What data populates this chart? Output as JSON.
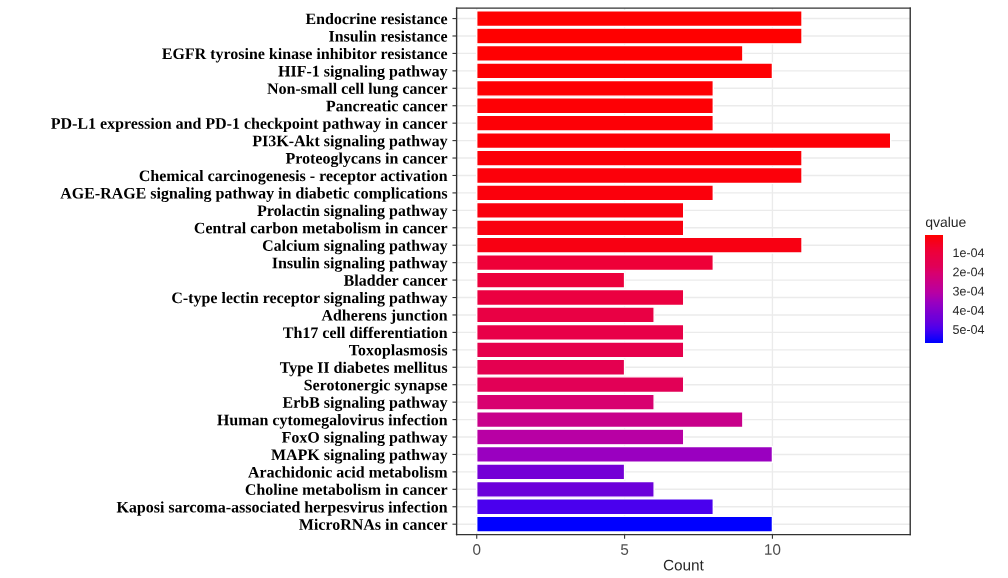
{
  "chart_data": {
    "type": "bar",
    "orientation": "horizontal",
    "xlabel": "Count",
    "clabel": "qvalue",
    "categories": [
      "Endocrine resistance",
      "Insulin resistance",
      "EGFR tyrosine kinase inhibitor resistance",
      "HIF-1 signaling pathway",
      "Non-small cell lung cancer",
      "Pancreatic cancer",
      "PD-L1 expression and PD-1 checkpoint pathway in cancer",
      "PI3K-Akt signaling pathway",
      "Proteoglycans in cancer",
      "Chemical carcinogenesis - receptor activation",
      "AGE-RAGE signaling pathway in diabetic complications",
      "Prolactin signaling pathway",
      "Central carbon metabolism in cancer",
      "Calcium signaling pathway",
      "Insulin signaling pathway",
      "Bladder cancer",
      "C-type lectin receptor signaling pathway",
      "Adherens junction",
      "Th17 cell differentiation",
      "Toxoplasmosis",
      "Type II diabetes mellitus",
      "Serotonergic synapse",
      "ErbB signaling pathway",
      "Human cytomegalovirus infection",
      "FoxO signaling pathway",
      "MAPK signaling pathway",
      "Arachidonic acid metabolism",
      "Choline metabolism in cancer",
      "Kaposi sarcoma-associated herpesvirus infection",
      "MicroRNAs in cancer"
    ],
    "values": [
      11,
      11,
      9,
      10,
      8,
      8,
      8,
      14,
      11,
      11,
      8,
      7,
      7,
      11,
      8,
      5,
      7,
      6,
      7,
      7,
      5,
      7,
      6,
      9,
      7,
      10,
      5,
      6,
      8,
      10
    ],
    "cvalues": [
      1e-05,
      1.1e-05,
      1.2e-05,
      1.3e-05,
      1.4e-05,
      1.5e-05,
      1.6e-05,
      1.7e-05,
      1.8e-05,
      2e-05,
      2.2e-05,
      2.5e-05,
      2.7e-05,
      3e-05,
      9e-05,
      0.0001,
      0.00011,
      0.00012,
      0.00013,
      0.00014,
      0.00015,
      0.00017,
      0.00021,
      0.00026,
      0.00031,
      0.00036,
      0.00043,
      0.00045,
      0.0005,
      0.00057
    ],
    "colors": [
      "#ff0000",
      "#ff0000",
      "#ff0002",
      "#fe0003",
      "#fe0004",
      "#fe0005",
      "#fd0006",
      "#fd0007",
      "#fc0008",
      "#fc000a",
      "#fb000c",
      "#fa000e",
      "#f9000f",
      "#f80012",
      "#ee0038",
      "#ec003c",
      "#eb0040",
      "#e90044",
      "#e80048",
      "#e6004c",
      "#e40050",
      "#e20056",
      "#d80070",
      "#c8008a",
      "#b800a4",
      "#9a00c0",
      "#7400d6",
      "#6c00da",
      "#4a00ee",
      "#0000ff"
    ],
    "xlim": [
      -0.68,
      14.66
    ],
    "xticks": [
      0,
      5,
      10
    ],
    "clim": [
      1e-05,
      0.00057
    ],
    "cticks": [
      {
        "value": 0.0001,
        "label": "1e-04"
      },
      {
        "value": 0.0002,
        "label": "2e-04"
      },
      {
        "value": 0.0003,
        "label": "3e-04"
      },
      {
        "value": 0.0004,
        "label": "4e-04"
      },
      {
        "value": 0.0005,
        "label": "5e-04"
      }
    ],
    "grid": true
  }
}
